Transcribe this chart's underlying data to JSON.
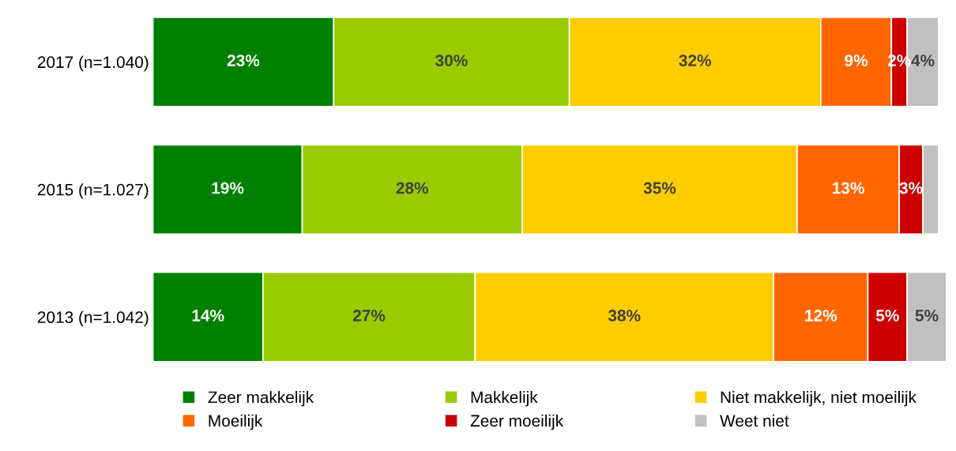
{
  "chart_data": {
    "type": "bar",
    "orientation": "horizontal",
    "stacked": true,
    "categories": [
      "2017 (n=1.040)",
      "2015 (n=1.027)",
      "2013 (n=1.042)"
    ],
    "series": [
      {
        "name": "Zeer makkelijk",
        "color": "#008000",
        "values": [
          23,
          19,
          14
        ],
        "value_labels": [
          "23%",
          "19%",
          "14%"
        ]
      },
      {
        "name": "Makkelijk",
        "color": "#99cc00",
        "values": [
          30,
          28,
          27
        ],
        "value_labels": [
          "30%",
          "28%",
          "27%"
        ]
      },
      {
        "name": "Niet makkelijk, niet moeilijk",
        "color": "#ffcc00",
        "values": [
          32,
          35,
          38
        ],
        "value_labels": [
          "32%",
          "35%",
          "38%"
        ]
      },
      {
        "name": "Moeilijk",
        "color": "#ff6600",
        "values": [
          9,
          13,
          12
        ],
        "value_labels": [
          "9%",
          "13%",
          "12%"
        ]
      },
      {
        "name": "Zeer moeilijk",
        "color": "#cc0000",
        "values": [
          2,
          3,
          5
        ],
        "value_labels": [
          "2%",
          "3%",
          "5%"
        ]
      },
      {
        "name": "Weet niet",
        "color": "#c0c0c0",
        "values": [
          4,
          2,
          5
        ],
        "value_labels": [
          "4%",
          null,
          "5%"
        ]
      }
    ],
    "xlim": [
      0,
      101
    ],
    "tick_labels": "y",
    "legend": "bottom"
  }
}
